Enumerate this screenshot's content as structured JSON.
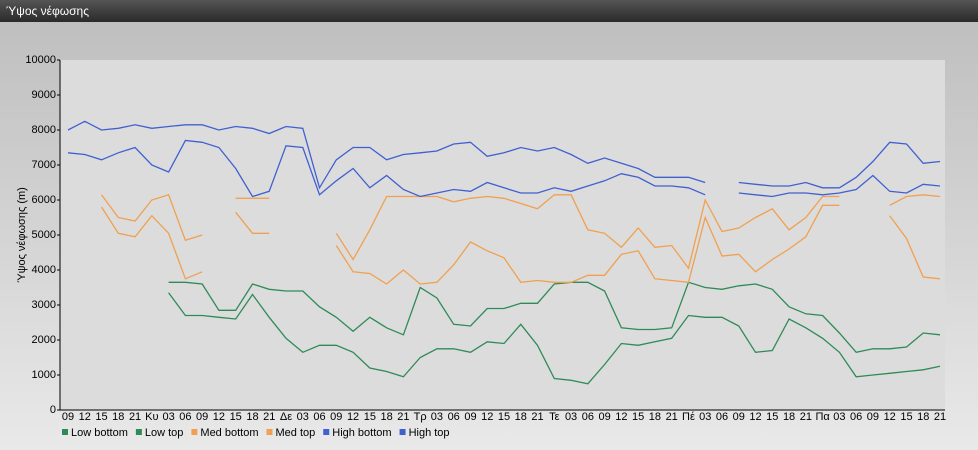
{
  "chart_data": {
    "type": "line",
    "title": "Ύψος νέφωσης",
    "y_label": "Ύψος νέφωσης (m)",
    "categories": [
      "09",
      "12",
      "15",
      "18",
      "21",
      "Κυ",
      "03",
      "06",
      "09",
      "12",
      "15",
      "18",
      "21",
      "Δε",
      "03",
      "06",
      "09",
      "12",
      "15",
      "18",
      "21",
      "Τρ",
      "03",
      "06",
      "09",
      "12",
      "15",
      "18",
      "21",
      "Τε",
      "03",
      "06",
      "09",
      "12",
      "15",
      "18",
      "21",
      "Πέ",
      "03",
      "06",
      "09",
      "12",
      "15",
      "18",
      "21",
      "Πα",
      "03",
      "06",
      "09",
      "12",
      "15",
      "18",
      "21"
    ],
    "ylim": [
      0,
      10000
    ],
    "yticks": [
      0,
      1000,
      2000,
      3000,
      4000,
      5000,
      6000,
      7000,
      8000,
      9000,
      10000
    ],
    "grid": false,
    "legend": "bottom",
    "series": [
      {
        "name": "Low bottom",
        "color": "#2e8b57",
        "values": [
          null,
          null,
          null,
          null,
          null,
          null,
          3350,
          2700,
          2700,
          2650,
          2600,
          3300,
          2650,
          2050,
          1650,
          1850,
          1850,
          1650,
          1200,
          1100,
          950,
          1500,
          1750,
          1750,
          1650,
          1950,
          1900,
          2450,
          1850,
          900,
          850,
          750,
          1300,
          1900,
          1850,
          1950,
          2050,
          2700,
          2650,
          2650,
          2400,
          1650,
          1700,
          2600,
          2350,
          2050,
          1650,
          950,
          1000,
          1050,
          1100,
          1150,
          1250
        ]
      },
      {
        "name": "Low top",
        "color": "#2e8b57",
        "values": [
          null,
          null,
          null,
          null,
          null,
          null,
          3650,
          3650,
          3600,
          2850,
          2850,
          3600,
          3450,
          3400,
          3400,
          2950,
          2650,
          2250,
          2650,
          2350,
          2150,
          3500,
          3200,
          2450,
          2400,
          2900,
          2900,
          3050,
          3050,
          3600,
          3650,
          3650,
          3400,
          2350,
          2300,
          2300,
          2350,
          3650,
          3500,
          3450,
          3550,
          3600,
          3450,
          2950,
          2750,
          2700,
          2200,
          1650,
          1750,
          1750,
          1800,
          2200,
          2150
        ]
      },
      {
        "name": "Med bottom",
        "color": "#f0a050",
        "values": [
          null,
          null,
          5800,
          5050,
          4950,
          5550,
          5050,
          3750,
          3950,
          null,
          5650,
          5050,
          5050,
          null,
          null,
          null,
          4700,
          3950,
          3900,
          3600,
          4000,
          3600,
          3650,
          4150,
          4800,
          4550,
          4350,
          3650,
          3700,
          3650,
          3650,
          3850,
          3850,
          4450,
          4550,
          3750,
          3700,
          3650,
          5500,
          4400,
          4450,
          3950,
          4300,
          4600,
          4950,
          5850,
          5850,
          null,
          null,
          5550,
          4900,
          3800,
          3750
        ]
      },
      {
        "name": "Med top",
        "color": "#f0a050",
        "values": [
          null,
          null,
          6150,
          5500,
          5400,
          6000,
          6150,
          4850,
          5000,
          null,
          6050,
          6050,
          6050,
          null,
          null,
          null,
          5050,
          4300,
          5150,
          6100,
          6100,
          6100,
          6100,
          5950,
          6050,
          6100,
          6050,
          5900,
          5750,
          6150,
          6150,
          5150,
          5050,
          4650,
          5200,
          4650,
          4700,
          4050,
          6000,
          5100,
          5200,
          5500,
          5750,
          5150,
          5500,
          6100,
          6100,
          null,
          null,
          5850,
          6100,
          6150,
          6100
        ]
      },
      {
        "name": "High bottom",
        "color": "#4060d0",
        "values": [
          7350,
          7300,
          7150,
          7350,
          7500,
          7000,
          6800,
          7700,
          7650,
          7500,
          6900,
          6100,
          6250,
          7550,
          7500,
          6150,
          6550,
          6900,
          6350,
          6700,
          6300,
          6100,
          6200,
          6300,
          6250,
          6500,
          6350,
          6200,
          6200,
          6350,
          6250,
          6400,
          6550,
          6750,
          6650,
          6400,
          6400,
          6350,
          6150,
          null,
          6200,
          6150,
          6100,
          6200,
          6200,
          6150,
          6200,
          6300,
          6700,
          6250,
          6200,
          6450,
          6400
        ]
      },
      {
        "name": "High top",
        "color": "#4060d0",
        "values": [
          8000,
          8250,
          8000,
          8050,
          8150,
          8050,
          8100,
          8150,
          8150,
          8000,
          8100,
          8050,
          7900,
          8100,
          8050,
          6350,
          7150,
          7500,
          7500,
          7150,
          7300,
          7350,
          7400,
          7600,
          7650,
          7250,
          7350,
          7500,
          7400,
          7500,
          7300,
          7050,
          7200,
          7050,
          6900,
          6650,
          6650,
          6650,
          6500,
          null,
          6500,
          6450,
          6400,
          6400,
          6500,
          6350,
          6350,
          6650,
          7100,
          7650,
          7600,
          7050,
          7100
        ]
      }
    ]
  }
}
